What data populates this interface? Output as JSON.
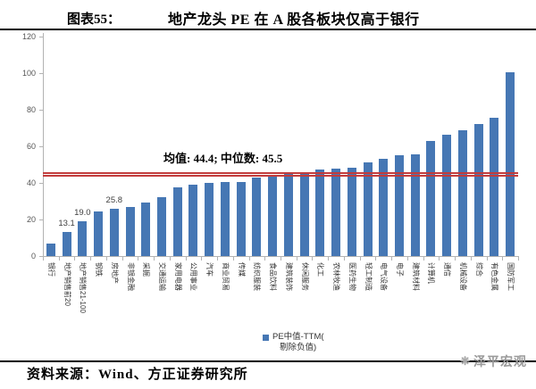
{
  "header": {
    "figure_label": "图表55：",
    "title": "地产龙头 PE 在 A 股各板块仅高于银行"
  },
  "chart_data": {
    "type": "bar",
    "title": "地产龙头 PE 在 A 股各板块仅高于银行",
    "categories": [
      "银行",
      "地产销售前20",
      "地产销售21-100",
      "钢铁",
      "房地产",
      "非银金融",
      "采掘",
      "交通运输",
      "家用电器",
      "公用事业",
      "汽车",
      "商业贸易",
      "传媒",
      "纺织服装",
      "食品饮料",
      "建筑装饰",
      "休闲服务",
      "化工",
      "农林牧渔",
      "医药生物",
      "轻工制造",
      "电气设备",
      "电子",
      "建筑材料",
      "计算机",
      "通信",
      "机械设备",
      "综合",
      "有色金属",
      "国防军工"
    ],
    "values": [
      7.0,
      13.1,
      19.0,
      24.2,
      25.8,
      27.0,
      29.5,
      32.3,
      37.6,
      38.9,
      39.9,
      40.5,
      40.5,
      42.8,
      44.0,
      45.2,
      45.7,
      47.3,
      47.8,
      48.4,
      51.4,
      53.3,
      55.0,
      55.4,
      62.8,
      66.3,
      68.8,
      72.2,
      75.8,
      100.6
    ],
    "bar_value_labels": [
      "",
      "13.1",
      "19.0",
      "",
      "25.8",
      "",
      "",
      "",
      "",
      "",
      "",
      "",
      "",
      "",
      "",
      "",
      "",
      "",
      "",
      "",
      "",
      "",
      "",
      "",
      "",
      "",
      "",
      "",
      "",
      ""
    ],
    "ylim": [
      0,
      120
    ],
    "yticks": [
      0,
      20,
      40,
      60,
      80,
      100,
      120
    ],
    "grid": false,
    "mean": 44.4,
    "median": 45.5,
    "annotation": "均值: 44.4; 中位数: 45.5",
    "legend_lines": [
      "PE中值-TTM(",
      "剔除负值)"
    ],
    "legend_position": "bottom",
    "bar_color": "#4677B4",
    "ref_line_color": "#C23B3B",
    "axis_color": "#B3B3B3"
  },
  "footer": {
    "source": "资料来源：Wind、方正证券研究所",
    "logo_text": "泽平宏观"
  }
}
